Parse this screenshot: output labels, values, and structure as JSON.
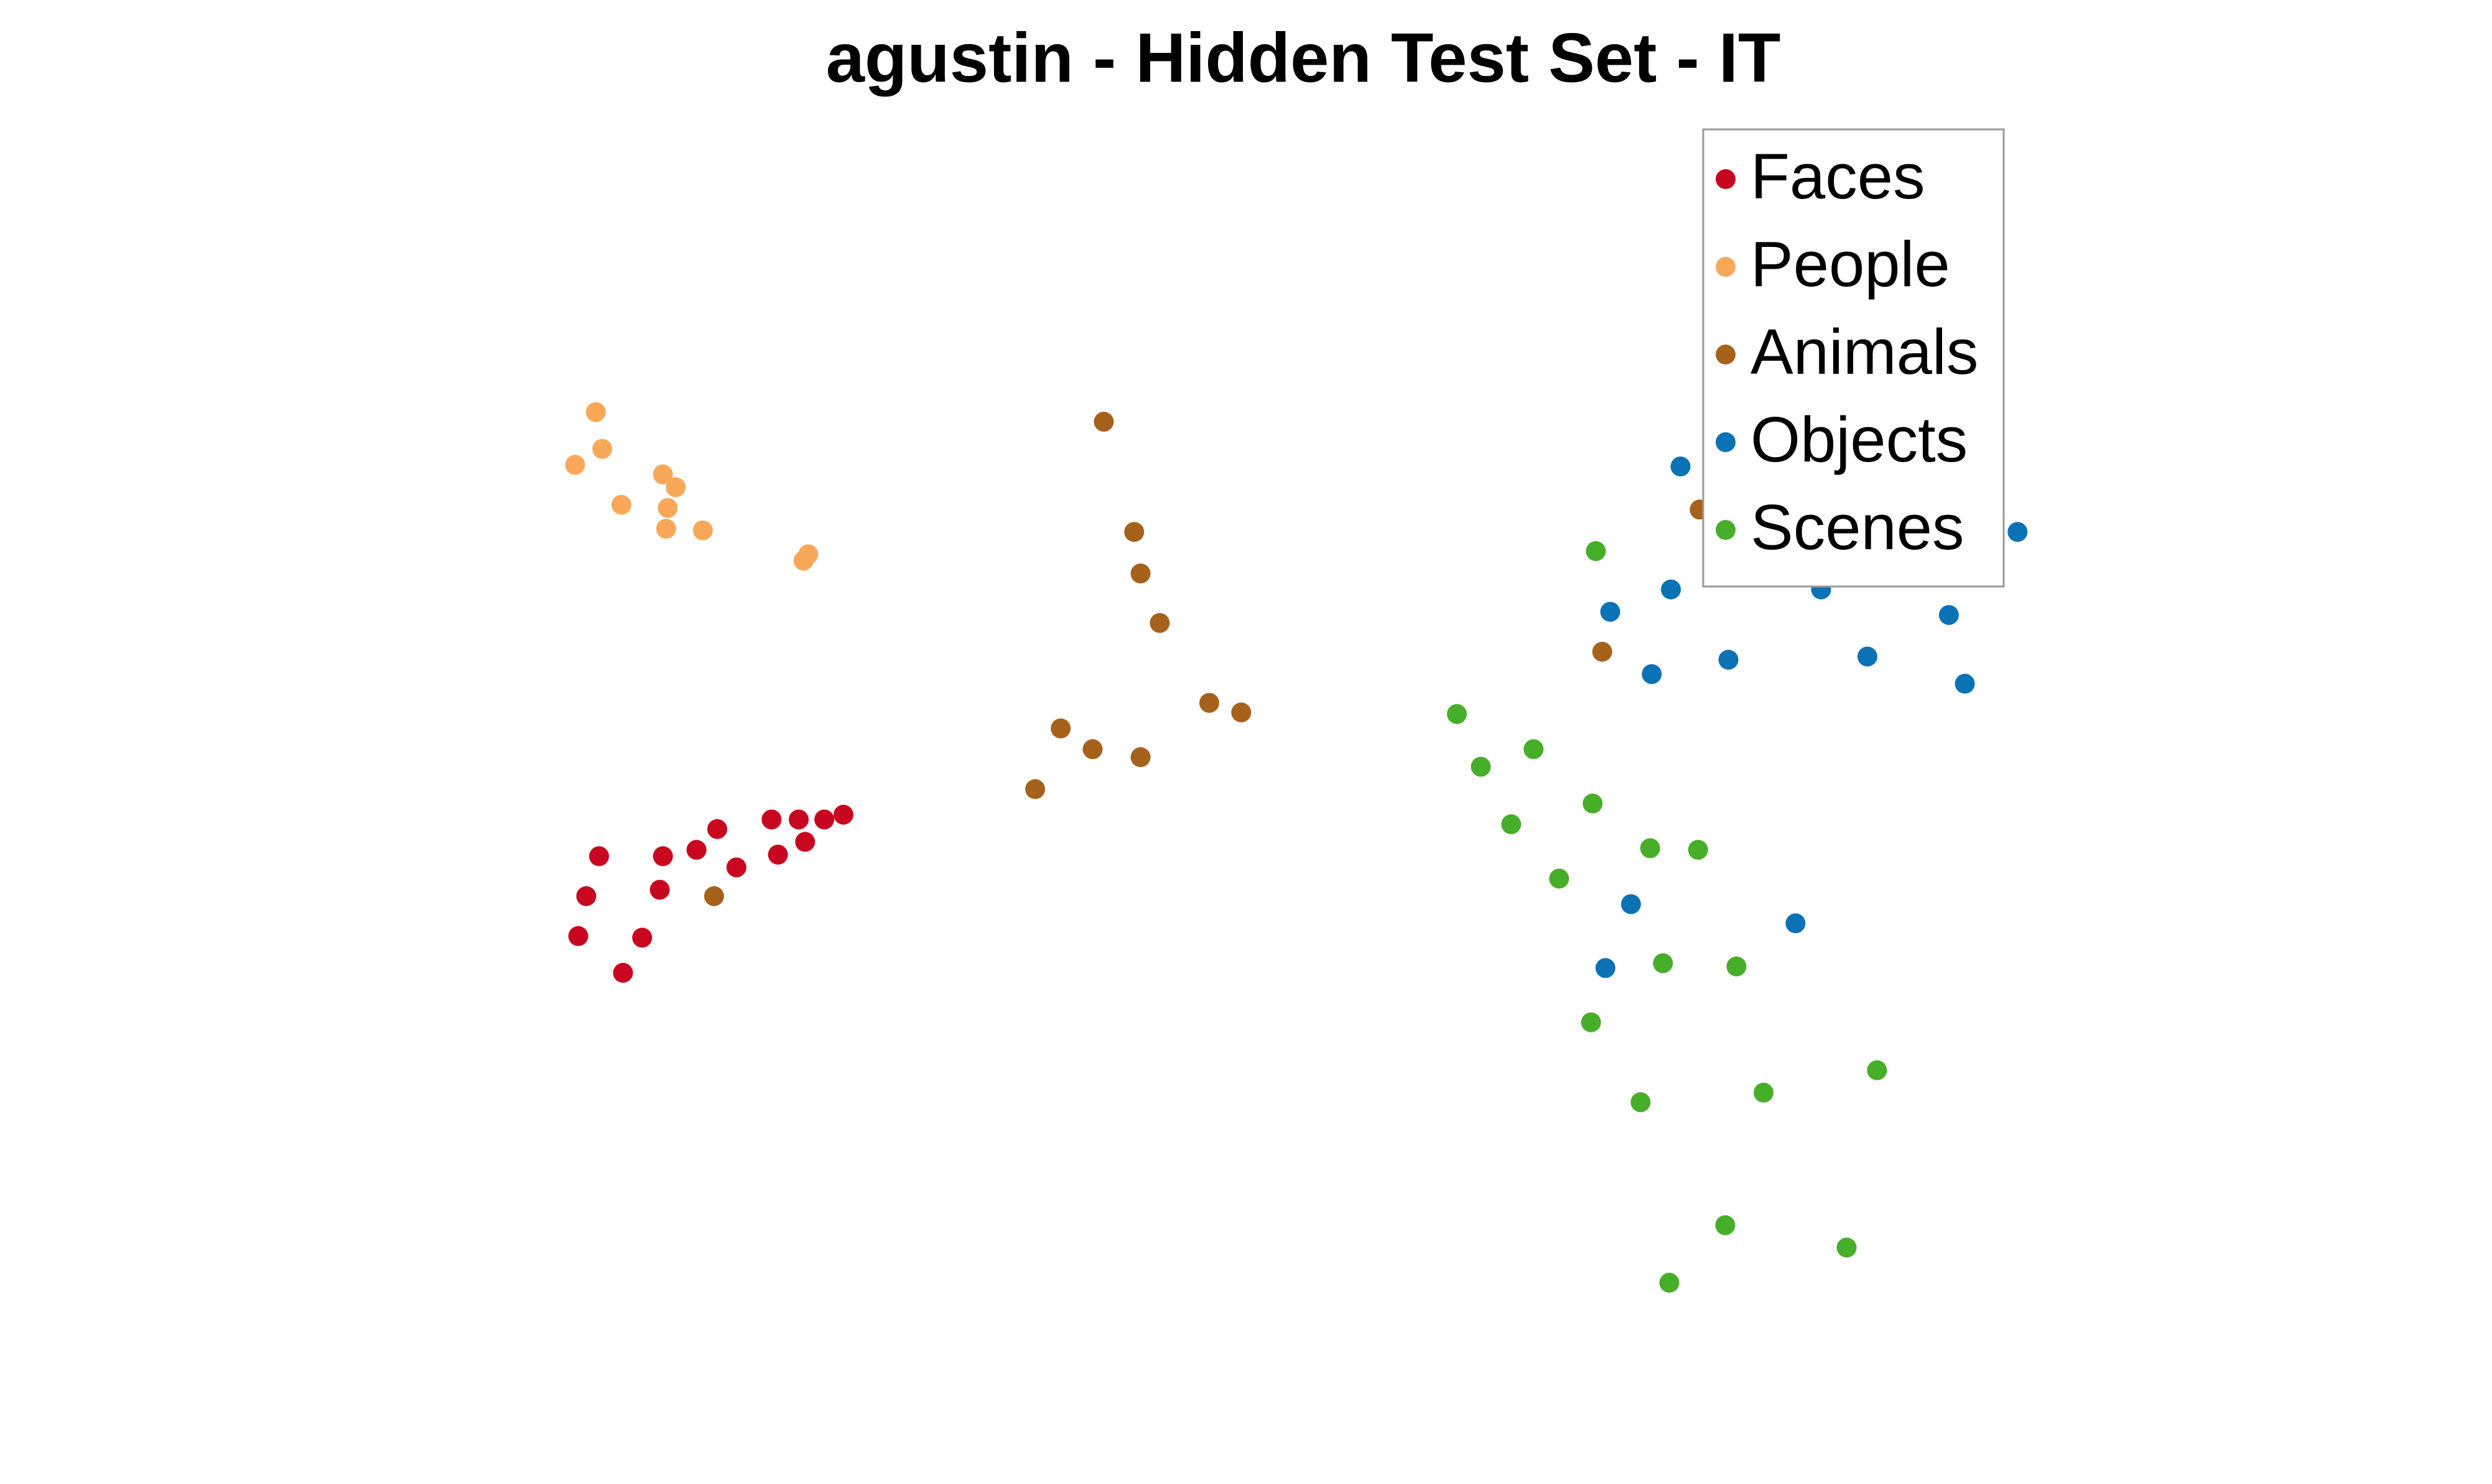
{
  "chart_data": {
    "type": "scatter",
    "title": "agustin - Hidden Test Set - IT",
    "xlim": [
      0,
      1560
    ],
    "ylim": [
      0,
      929
    ],
    "legend": "northeast",
    "series": [
      {
        "name": "Faces",
        "color": "#c9061f",
        "x": [
          528,
          516,
          500,
          483,
          449,
          436,
          415,
          375,
          461,
          487,
          504,
          367,
          413,
          362,
          402,
          390
        ],
        "values": [
          419,
          416,
          416,
          416,
          410,
          397,
          393,
          393,
          386,
          394,
          402,
          368,
          372,
          343,
          342,
          320
        ]
      },
      {
        "name": "People",
        "color": "#f9a85a",
        "x": [
          373,
          377,
          360,
          415,
          423,
          389,
          418,
          417,
          440,
          506,
          503
        ],
        "values": [
          671,
          648,
          638,
          632,
          624,
          613,
          611,
          598,
          597,
          582,
          578
        ]
      },
      {
        "name": "Animals",
        "color": "#a6621b",
        "x": [
          691,
          710,
          714,
          726,
          757,
          777,
          664,
          684,
          714,
          648,
          447,
          1003,
          1064,
          1095
        ],
        "values": [
          665,
          596,
          570,
          539,
          489,
          483,
          473,
          460,
          455,
          435,
          368,
          521,
          610,
          572
        ]
      },
      {
        "name": "Objects",
        "color": "#0b72b5",
        "x": [
          1052,
          1263,
          1008,
          1046,
          1140,
          1220,
          1034,
          1082,
          1169,
          1230,
          1021,
          1124,
          1005
        ],
        "values": [
          637,
          596,
          546,
          560,
          560,
          544,
          507,
          516,
          518,
          501,
          363,
          351,
          323
        ]
      },
      {
        "name": "Scenes",
        "color": "#47ae2a",
        "x": [
          999,
          912,
          960,
          927,
          997,
          946,
          1033,
          1063,
          976,
          1041,
          1087,
          996,
          1175,
          1104,
          1027,
          1080,
          1156,
          1045
        ],
        "values": [
          584,
          482,
          460,
          449,
          426,
          413,
          398,
          397,
          379,
          326,
          324,
          289,
          259,
          245,
          239,
          162,
          148,
          126
        ]
      }
    ]
  }
}
